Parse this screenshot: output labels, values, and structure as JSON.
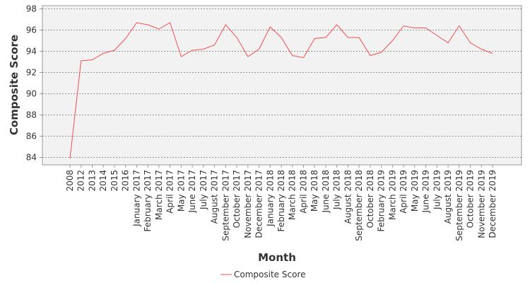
{
  "chart_data": {
    "type": "line",
    "x_label": "Month",
    "y_label": "Composite Score",
    "categories": [
      "2008",
      "2012",
      "2013",
      "2014",
      "2015",
      "2016",
      "January 2017",
      "February 2017",
      "March 2017",
      "April 2017",
      "May 2017",
      "June 2017",
      "July 2017",
      "August 2017",
      "September 2017",
      "October 2017",
      "November 2017",
      "December 2017",
      "January 2018",
      "February 2018",
      "March 2018",
      "April 2018",
      "May 2018",
      "June 2018",
      "July 2018",
      "August 2018",
      "September 2018",
      "October 2018",
      "February 2019",
      "March 2019",
      "April 2019",
      "May 2019",
      "June 2019",
      "July 2019",
      "August 2019",
      "September 2019",
      "October 2019",
      "November 2019",
      "December 2019"
    ],
    "series": [
      {
        "name": "Composite Score",
        "color": "#f05050",
        "values": [
          83.9,
          93.1,
          93.2,
          93.8,
          94.1,
          95.2,
          96.7,
          96.5,
          96.1,
          96.7,
          93.5,
          94.1,
          94.2,
          94.6,
          96.5,
          95.3,
          93.5,
          94.2,
          96.3,
          95.3,
          93.6,
          93.4,
          95.2,
          95.3,
          96.5,
          95.3,
          95.3,
          93.6,
          93.9,
          95.0,
          96.4,
          96.2,
          96.2,
          95.5,
          94.8,
          96.4,
          94.8,
          94.2,
          93.8
        ]
      }
    ],
    "ylim": [
      83.3,
      98.3
    ],
    "yticks": [
      84,
      86,
      88,
      90,
      92,
      94,
      96,
      98
    ],
    "grid": true
  }
}
